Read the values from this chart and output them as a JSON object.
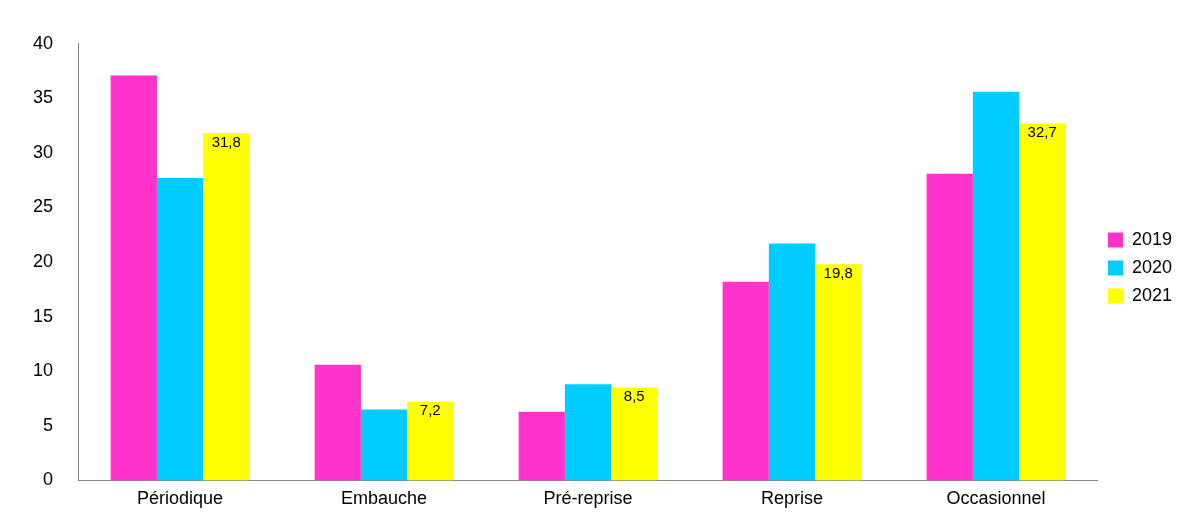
{
  "chart_data": {
    "type": "bar",
    "categories": [
      "Périodique",
      "Embauche",
      "Pré-reprise",
      "Reprise",
      "Occasionnel"
    ],
    "series": [
      {
        "name": "2019",
        "color": "#ff33cc",
        "values": [
          37.1,
          10.6,
          6.3,
          18.2,
          28.1
        ]
      },
      {
        "name": "2020",
        "color": "#00ccff",
        "values": [
          27.7,
          6.5,
          8.8,
          21.7,
          35.6
        ]
      },
      {
        "name": "2021",
        "color": "#ffff00",
        "values": [
          31.8,
          7.2,
          8.5,
          19.8,
          32.7
        ],
        "value_labels": [
          "31,8",
          "7,2",
          "8,5",
          "19,8",
          "32,7"
        ]
      }
    ],
    "ylim": [
      0,
      40
    ],
    "yticks": [
      0,
      5,
      10,
      15,
      20,
      25,
      30,
      35,
      40
    ],
    "grid": false,
    "legend": "right"
  }
}
